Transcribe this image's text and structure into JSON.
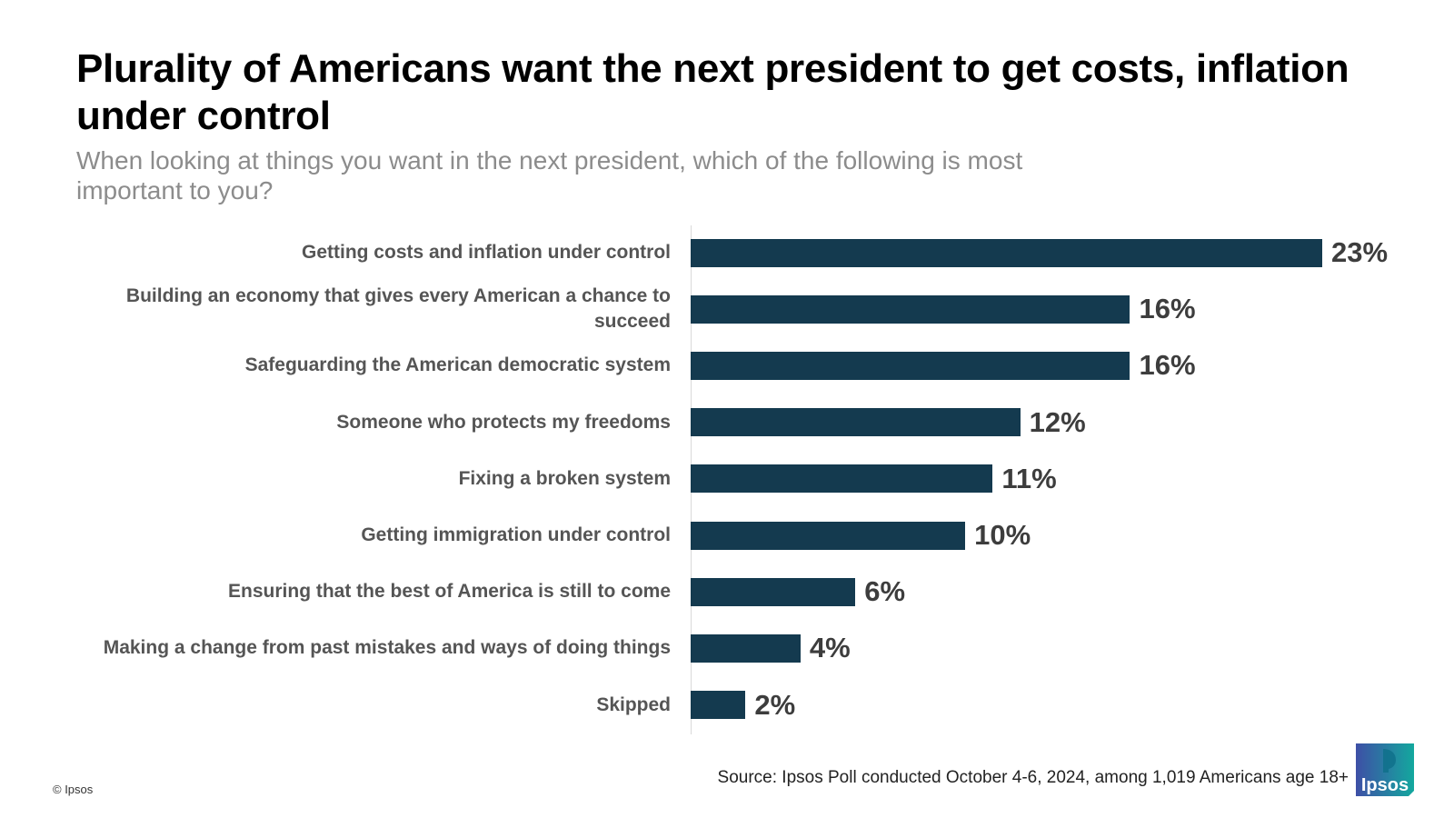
{
  "header": {
    "title": "Plurality of Americans want the next president to get costs, inflation under control",
    "subtitle": "When looking at things you want in the next president, which of the following is most important to you?"
  },
  "chart_data": {
    "type": "bar",
    "orientation": "horizontal",
    "categories": [
      "Getting costs and inflation under control",
      "Building an economy that gives every American a chance to succeed",
      "Safeguarding the American democratic system",
      "Someone who protects my freedoms",
      "Fixing a broken system",
      "Getting immigration under control",
      "Ensuring that the best of America is still to come",
      "Making a change from past mistakes and ways of doing things",
      "Skipped"
    ],
    "values": [
      23,
      16,
      16,
      12,
      11,
      10,
      6,
      4,
      2
    ],
    "value_labels": [
      "23%",
      "16%",
      "16%",
      "12%",
      "11%",
      "10%",
      "6%",
      "4%",
      "2%"
    ],
    "xlim": [
      0,
      23
    ],
    "grid": false,
    "bar_color": "#143a4f"
  },
  "footer": {
    "copyright": "© Ipsos",
    "source": "Source: Ipsos Poll conducted October 4-6, 2024, among 1,019 Americans age 18+",
    "logo_text": "Ipsos"
  },
  "colors": {
    "bar": "#143a4f",
    "logo_blue": "#3e4fa6",
    "logo_teal": "#13a89e"
  }
}
